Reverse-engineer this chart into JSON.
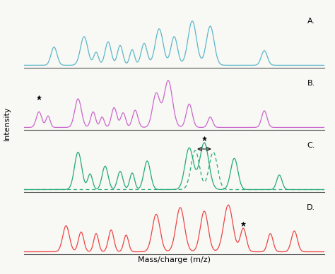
{
  "panel_labels": [
    "A.",
    "B.",
    "C.",
    "D."
  ],
  "colors": {
    "A": "#5bb8c8",
    "B": "#cc66cc",
    "C": "#22aa77",
    "D": "#ee4444"
  },
  "dashed_color": "#22aa77",
  "xlabel": "Mass/charge (m/z)",
  "ylabel": "Intensity",
  "background": "#f8f8f5",
  "star_marker": "*"
}
